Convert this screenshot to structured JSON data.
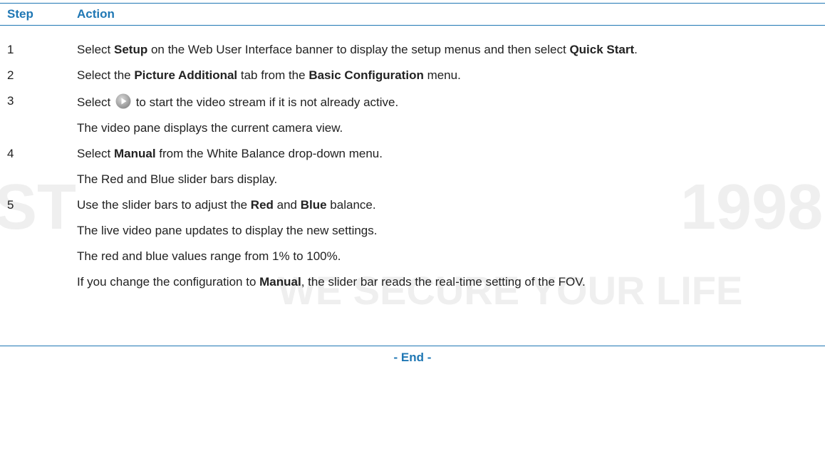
{
  "header": {
    "step": "Step",
    "action": "Action"
  },
  "rows": [
    {
      "step": "1",
      "paragraphs": [
        [
          {
            "t": "Select "
          },
          {
            "b": "Setup"
          },
          {
            "t": " on the Web User Interface banner to display the setup menus and then select "
          },
          {
            "b": "Quick Start"
          },
          {
            "t": "."
          }
        ]
      ]
    },
    {
      "step": "2",
      "paragraphs": [
        [
          {
            "t": "Select the "
          },
          {
            "b": "Picture Additional"
          },
          {
            "t": " tab from the "
          },
          {
            "b": "Basic Configuration"
          },
          {
            "t": " menu."
          }
        ]
      ]
    },
    {
      "step": "3",
      "paragraphs": [
        [
          {
            "t": "Select "
          },
          {
            "t": " to start the video stream if it is not already active."
          }
        ],
        [
          {
            "t": "The video pane displays the current camera view."
          }
        ]
      ]
    },
    {
      "step": "4",
      "paragraphs": [
        [
          {
            "t": "Select "
          },
          {
            "b": "Manual"
          },
          {
            "t": " from the White Balance drop-down menu."
          }
        ],
        [
          {
            "t": "The Red and Blue slider bars display."
          }
        ]
      ]
    },
    {
      "step": "5",
      "paragraphs": [
        [
          {
            "t": "Use the slider bars to adjust the "
          },
          {
            "b": "Red"
          },
          {
            "t": " and "
          },
          {
            "b": "Blue"
          },
          {
            "t": " balance."
          }
        ],
        [
          {
            "t": "The live video pane updates to display the new settings."
          }
        ],
        [
          {
            "t": "The red and blue values range from 1% to 100%."
          }
        ],
        [
          {
            "t": "If you change the configuration to "
          },
          {
            "b": "Manual"
          },
          {
            "t": ", the slider bar reads the real-time setting of the FOV."
          }
        ]
      ]
    }
  ],
  "footer": "- End -",
  "watermark": [
    "ST",
    "1998",
    "WE SECURE YOUR LIFE"
  ]
}
